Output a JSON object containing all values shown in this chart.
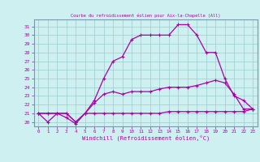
{
  "title": "Courbe du refroidissement éolien pour Aix-la-Chapelle (All)",
  "xlabel": "Windchill (Refroidissement éolien,°C)",
  "x_ticks": [
    0,
    1,
    2,
    3,
    4,
    5,
    6,
    7,
    8,
    9,
    10,
    11,
    12,
    13,
    14,
    15,
    16,
    17,
    18,
    19,
    20,
    21,
    22,
    23
  ],
  "y_ticks": [
    20,
    21,
    22,
    23,
    24,
    25,
    26,
    27,
    28,
    29,
    30,
    31
  ],
  "xlim": [
    -0.5,
    23.5
  ],
  "ylim": [
    19.5,
    31.8
  ],
  "bg_color": "#cff0f0",
  "line_color": "#aa00aa",
  "grid_color": "#99cccc",
  "spine_color": "#7799aa",
  "line1_x": [
    0,
    1,
    2,
    3,
    4,
    5,
    6,
    7,
    8,
    9,
    10,
    11,
    12,
    13,
    14,
    15,
    16,
    17,
    18,
    19,
    20,
    21,
    22,
    23
  ],
  "line1_y": [
    21.0,
    20.0,
    21.0,
    20.5,
    19.8,
    21.0,
    22.5,
    25.0,
    27.0,
    27.5,
    29.5,
    30.0,
    30.0,
    30.0,
    30.0,
    31.2,
    31.2,
    30.0,
    28.0,
    28.0,
    25.0,
    23.0,
    22.5,
    21.5
  ],
  "line2_x": [
    0,
    1,
    2,
    3,
    4,
    5,
    6,
    7,
    8,
    9,
    10,
    11,
    12,
    13,
    14,
    15,
    16,
    17,
    18,
    19,
    20,
    21,
    22,
    23
  ],
  "line2_y": [
    21.0,
    21.0,
    21.0,
    21.0,
    20.0,
    21.0,
    22.2,
    23.2,
    23.5,
    23.2,
    23.5,
    23.5,
    23.5,
    23.8,
    24.0,
    24.0,
    24.0,
    24.2,
    24.5,
    24.8,
    24.5,
    23.2,
    21.5,
    21.5
  ],
  "line3_x": [
    0,
    1,
    2,
    3,
    4,
    5,
    6,
    7,
    8,
    9,
    10,
    11,
    12,
    13,
    14,
    15,
    16,
    17,
    18,
    19,
    20,
    21,
    22,
    23
  ],
  "line3_y": [
    21.0,
    21.0,
    21.0,
    21.0,
    20.0,
    21.0,
    21.0,
    21.0,
    21.0,
    21.0,
    21.0,
    21.0,
    21.0,
    21.0,
    21.2,
    21.2,
    21.2,
    21.2,
    21.2,
    21.2,
    21.2,
    21.2,
    21.2,
    21.5
  ]
}
